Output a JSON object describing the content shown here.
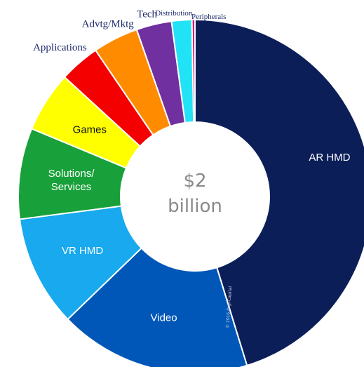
{
  "chart_data": {
    "type": "pie",
    "style": "donut",
    "title": "",
    "center_label": [
      "$2",
      "billion"
    ],
    "credit": "© 2016 Digi-Capital",
    "slices": [
      {
        "label": "AR HMD",
        "value": 49.0,
        "color": "#0b1e57",
        "label_position": "inside",
        "text_color": "#ffffff"
      },
      {
        "label": "Video",
        "value": 19.0,
        "color": "#0057b8",
        "label_position": "inside",
        "text_color": "#ffffff"
      },
      {
        "label": "VR HMD",
        "value": 11.0,
        "color": "#18a9ee",
        "label_position": "inside",
        "text_color": "#ffffff"
      },
      {
        "label": "Solutions/\nServices",
        "value": 9.0,
        "color": "#18a13a",
        "label_position": "inside",
        "text_color": "#ffffff"
      },
      {
        "label": "Games",
        "value": 6.0,
        "color": "#ffff00",
        "label_position": "inside",
        "text_color": "#111111"
      },
      {
        "label": "Applications",
        "value": 4.0,
        "color": "#f40000",
        "label_position": "outside",
        "text_color": "#1b2a6b"
      },
      {
        "label": "Advtg/Mktg",
        "value": 4.5,
        "color": "#ff8c00",
        "label_position": "outside",
        "text_color": "#1b2a6b"
      },
      {
        "label": "Tech",
        "value": 3.5,
        "color": "#7030a0",
        "label_position": "outside",
        "text_color": "#1b2a6b"
      },
      {
        "label": "Distribution",
        "value": 2.0,
        "color": "#22e3f5",
        "label_position": "outside",
        "text_color": "#1b2a6b"
      },
      {
        "label": "Peripherals",
        "value": 0.3,
        "color": "#d8007a",
        "label_position": "outside",
        "text_color": "#1b2a6b"
      }
    ]
  }
}
